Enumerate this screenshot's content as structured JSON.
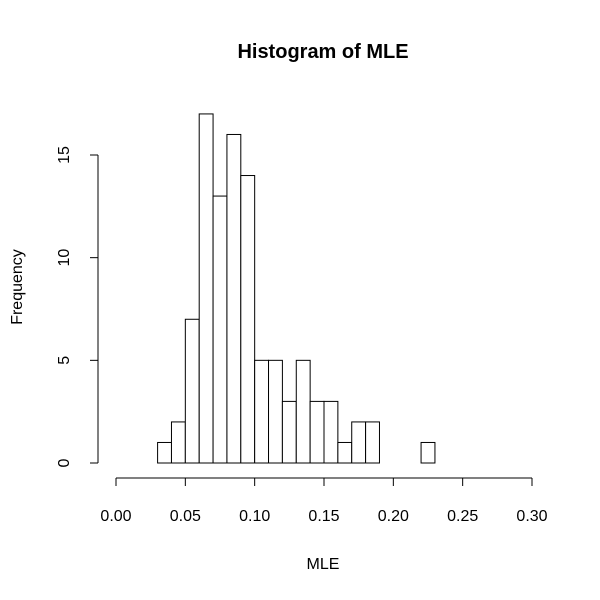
{
  "chart_data": {
    "type": "bar",
    "title": "Histogram of MLE",
    "xlabel": "MLE",
    "ylabel": "Frequency",
    "bin_width": 0.01,
    "bins": [
      {
        "from": 0.03,
        "to": 0.04,
        "count": 1
      },
      {
        "from": 0.04,
        "to": 0.05,
        "count": 2
      },
      {
        "from": 0.05,
        "to": 0.06,
        "count": 7
      },
      {
        "from": 0.06,
        "to": 0.07,
        "count": 17
      },
      {
        "from": 0.07,
        "to": 0.08,
        "count": 13
      },
      {
        "from": 0.08,
        "to": 0.09,
        "count": 16
      },
      {
        "from": 0.09,
        "to": 0.1,
        "count": 14
      },
      {
        "from": 0.1,
        "to": 0.11,
        "count": 5
      },
      {
        "from": 0.11,
        "to": 0.12,
        "count": 5
      },
      {
        "from": 0.12,
        "to": 0.13,
        "count": 3
      },
      {
        "from": 0.13,
        "to": 0.14,
        "count": 5
      },
      {
        "from": 0.14,
        "to": 0.15,
        "count": 3
      },
      {
        "from": 0.15,
        "to": 0.16,
        "count": 3
      },
      {
        "from": 0.16,
        "to": 0.17,
        "count": 1
      },
      {
        "from": 0.17,
        "to": 0.18,
        "count": 2
      },
      {
        "from": 0.18,
        "to": 0.19,
        "count": 2
      },
      {
        "from": 0.19,
        "to": 0.2,
        "count": 0
      },
      {
        "from": 0.2,
        "to": 0.21,
        "count": 0
      },
      {
        "from": 0.21,
        "to": 0.22,
        "count": 0
      },
      {
        "from": 0.22,
        "to": 0.23,
        "count": 1
      }
    ],
    "xlim": [
      0.0,
      0.3
    ],
    "ylim": [
      0,
      17
    ],
    "xticks": [
      0.0,
      0.05,
      0.1,
      0.15,
      0.2,
      0.25,
      0.3
    ],
    "xtick_labels": [
      "0.00",
      "0.05",
      "0.10",
      "0.15",
      "0.20",
      "0.25",
      "0.30"
    ],
    "yticks": [
      0,
      5,
      10,
      15
    ],
    "ytick_labels": [
      "0",
      "5",
      "10",
      "15"
    ],
    "grid": false,
    "legend": false,
    "colors": {
      "bar_fill": "#ffffff",
      "bar_stroke": "#000000"
    }
  }
}
